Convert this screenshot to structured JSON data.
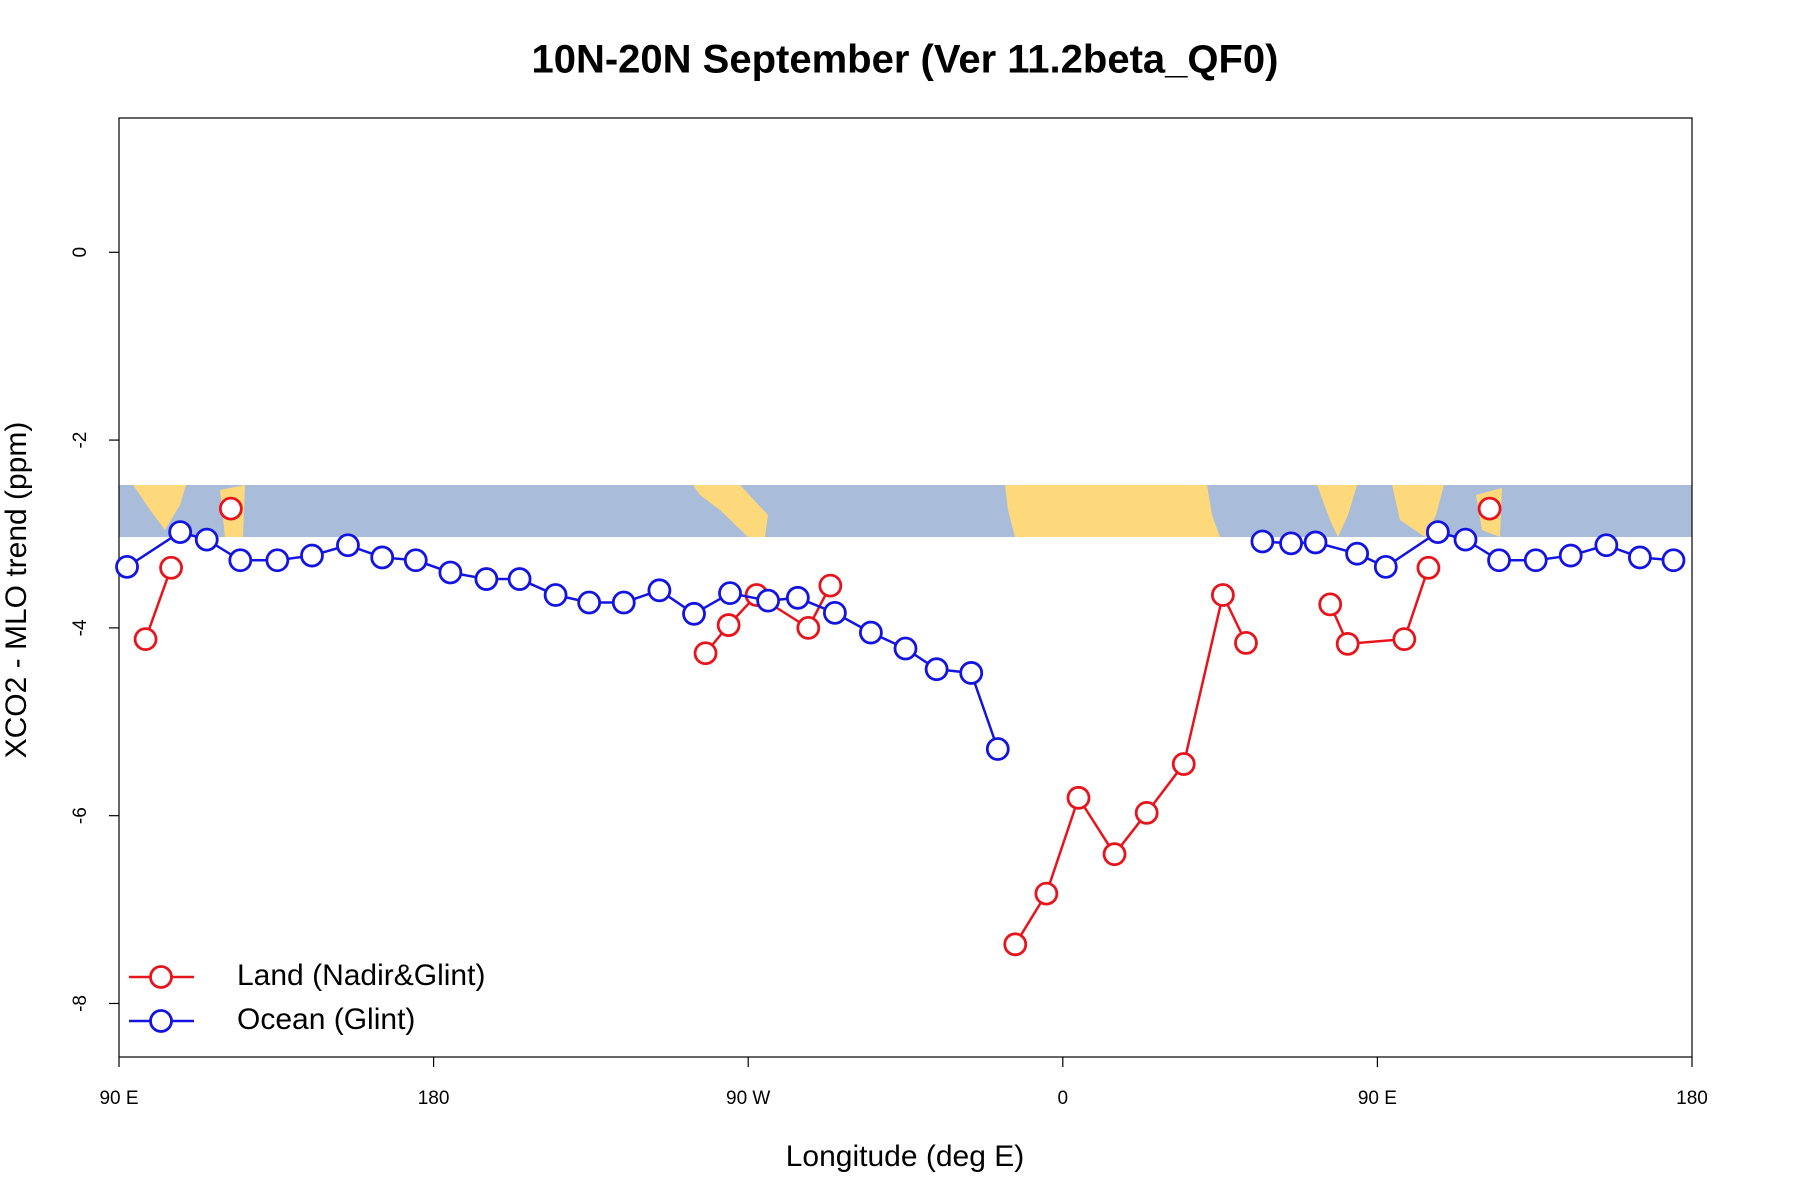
{
  "chart_data": {
    "type": "line",
    "title": "10N-20N September (Ver 11.2beta_QF0)",
    "x_label": "Longitude (deg E)",
    "y_label": "XCO2 - MLO trend (ppm)",
    "xlim": [
      90,
      540
    ],
    "ylim": [
      -8.57,
      1.43
    ],
    "xticks": [
      {
        "value": 90,
        "label": "90 E"
      },
      180,
      {
        "value": 270,
        "label": "90 W"
      },
      {
        "value": 360,
        "label": "0"
      },
      {
        "value": 450,
        "label": "90 E"
      },
      {
        "value": 540,
        "label": "180"
      }
    ],
    "yticks": [
      0,
      -2,
      -4,
      -6,
      -8
    ],
    "grid": false,
    "legend": "bottom-left",
    "series": [
      {
        "name": "Land (Nadir&Glint)",
        "color": "#e8141c",
        "x": [
          97.6,
          104.9,
          null,
          122.0,
          null,
          257.8,
          264.4,
          272.4,
          287.2,
          293.5,
          null,
          346.4,
          355.3,
          364.5,
          374.8,
          384.0,
          394.6,
          405.8,
          412.4,
          null,
          436.5,
          441.5,
          457.7,
          464.6,
          null,
          482.1
        ],
        "values": [
          -4.12,
          -3.36,
          null,
          -2.73,
          null,
          -4.27,
          -3.97,
          -3.65,
          -4.0,
          -3.55,
          null,
          -7.37,
          -6.83,
          -5.81,
          -6.41,
          -5.97,
          -5.45,
          -3.65,
          -4.16,
          null,
          -3.75,
          -4.17,
          -4.12,
          -3.36,
          null,
          -2.73
        ]
      },
      {
        "name": "Ocean (Glint)",
        "color": "#1414e0",
        "x": [
          92.3,
          107.5,
          115.1,
          124.7,
          135.3,
          145.2,
          155.5,
          165.3,
          174.9,
          184.8,
          195.1,
          204.6,
          214.9,
          224.5,
          234.4,
          244.6,
          254.5,
          264.8,
          275.7,
          284.2,
          294.8,
          305.1,
          315.0,
          323.9,
          333.8,
          341.4,
          null,
          417.1,
          425.3,
          432.3,
          444.2,
          452.4,
          467.3,
          475.2,
          484.8,
          495.3,
          505.3,
          515.5,
          525.1,
          534.7
        ],
        "values": [
          -3.35,
          -2.98,
          -3.06,
          -3.28,
          -3.28,
          -3.23,
          -3.12,
          -3.25,
          -3.28,
          -3.41,
          -3.48,
          -3.48,
          -3.65,
          -3.73,
          -3.73,
          -3.6,
          -3.85,
          -3.63,
          -3.71,
          -3.68,
          -3.84,
          -4.05,
          -4.22,
          -4.44,
          -4.48,
          -5.29,
          null,
          -3.08,
          -3.1,
          -3.09,
          -3.21,
          -3.35,
          -2.98,
          -3.06,
          -3.28,
          -3.28,
          -3.23,
          -3.12,
          -3.25,
          -3.28
        ]
      }
    ]
  }
}
